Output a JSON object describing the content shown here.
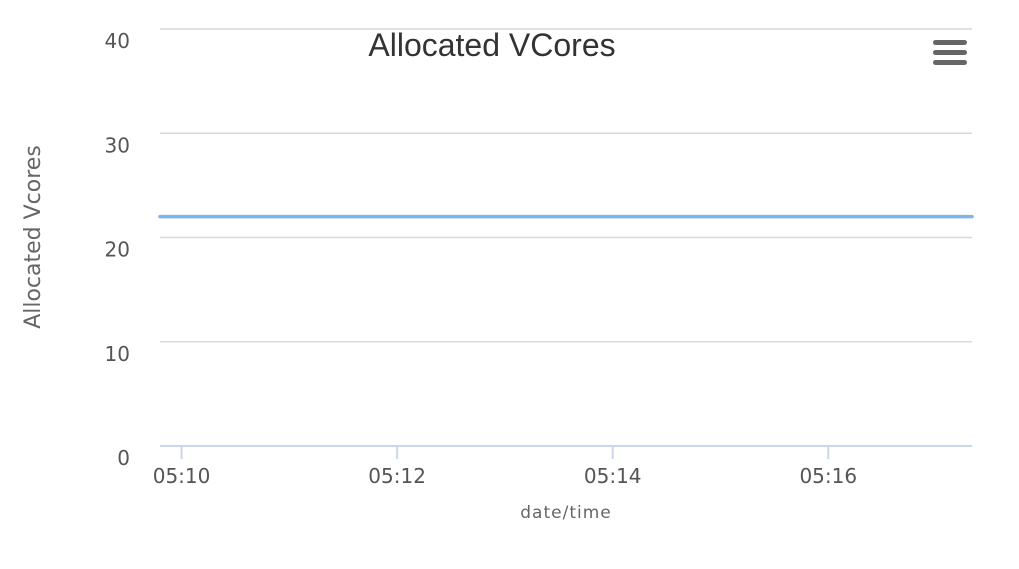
{
  "chart_data": {
    "type": "line",
    "title": "Allocated VCores",
    "xlabel": "date/time",
    "ylabel": "Allocated Vcores",
    "ylim": [
      0,
      40
    ],
    "yticks": [
      "0",
      "10",
      "20",
      "30",
      "40"
    ],
    "xticks": [
      "05:10",
      "05:12",
      "05:14",
      "05:16"
    ],
    "xlim": [
      "05:09:48",
      "05:17:20"
    ],
    "grid": true,
    "series": [
      {
        "x": [
          "05:09:48",
          "05:17:20"
        ],
        "values": [
          22,
          22
        ],
        "color": "#7cb5ec"
      }
    ]
  },
  "menu": {
    "icon": "hamburger-menu-icon"
  },
  "colors": {
    "series": "#7cb5ec",
    "grid": "#d8d8d8",
    "axis": "#ccd6eb",
    "text": "#333333"
  }
}
